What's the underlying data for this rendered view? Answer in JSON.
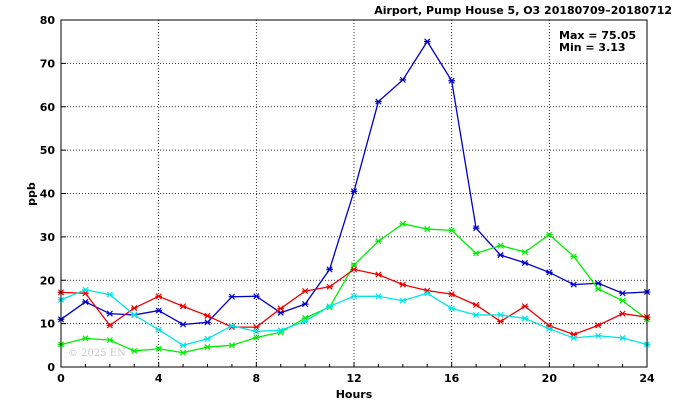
{
  "chart_data": {
    "type": "line",
    "title": "Airport, Pump House 5, O3 20180709–20180712",
    "xlabel": "Hours",
    "ylabel": "ppb",
    "xlim": [
      0,
      24
    ],
    "ylim": [
      0,
      80
    ],
    "xticks": [
      0,
      4,
      8,
      12,
      16,
      20,
      24
    ],
    "yticks": [
      0,
      10,
      20,
      30,
      40,
      50,
      60,
      70,
      80
    ],
    "grid": true,
    "stats": {
      "max": "Max = 75.05",
      "min": "Min =  3.13"
    },
    "watermark": "© 2025 EN",
    "x": [
      0,
      1,
      2,
      3,
      4,
      5,
      6,
      7,
      8,
      9,
      10,
      11,
      12,
      13,
      14,
      15,
      16,
      17,
      18,
      19,
      20,
      21,
      22,
      23,
      24
    ],
    "series": [
      {
        "color": "#0000cc",
        "values": [
          11,
          15,
          12.3,
          12,
          13,
          9.8,
          10.3,
          16.2,
          16.3,
          12.5,
          14.5,
          22.5,
          40.5,
          61.2,
          66.2,
          75.05,
          66,
          32,
          25.8,
          24,
          21.8,
          19,
          19.3,
          17,
          17.3
        ]
      },
      {
        "color": "#00ee00",
        "values": [
          5.2,
          6.6,
          6.2,
          3.7,
          4.2,
          3.3,
          4.6,
          5,
          6.8,
          8,
          11.3,
          13.8,
          23.5,
          29,
          33,
          31.8,
          31.5,
          26.2,
          28,
          26.5,
          30.5,
          25.5,
          18,
          15.3,
          11
        ]
      },
      {
        "color": "#ee0000",
        "values": [
          17.2,
          17,
          9.6,
          13.6,
          16.3,
          14,
          11.8,
          9.2,
          9.2,
          13.5,
          17.5,
          18.5,
          22.5,
          21.3,
          19,
          17.6,
          16.8,
          14.3,
          10.5,
          14,
          9.5,
          7.5,
          9.6,
          12.3,
          11.5
        ]
      },
      {
        "color": "#00e5e5",
        "values": [
          15.5,
          17.8,
          16.7,
          12,
          8.6,
          5,
          6.5,
          9.5,
          8.2,
          8.5,
          10.5,
          14,
          16.3,
          16.3,
          15.3,
          17,
          13.5,
          12,
          12,
          11.2,
          8.8,
          6.7,
          7.2,
          6.7,
          5.2
        ]
      }
    ]
  }
}
